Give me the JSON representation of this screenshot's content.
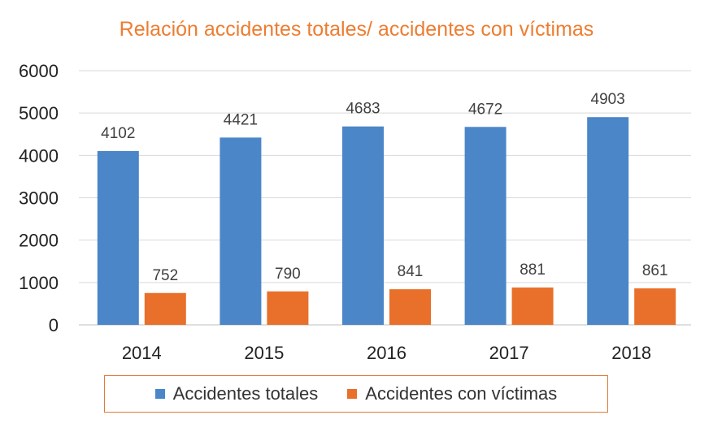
{
  "chart_data": {
    "type": "bar",
    "title": "Relación accidentes totales/ accidentes con víctimas",
    "categories": [
      "2014",
      "2015",
      "2016",
      "2017",
      "2018"
    ],
    "series": [
      {
        "name": "Accidentes totales",
        "values": [
          4102,
          4421,
          4683,
          4672,
          4903
        ],
        "color": "#4a86c8"
      },
      {
        "name": "Accidentes con víctimas",
        "values": [
          752,
          790,
          841,
          881,
          861
        ],
        "color": "#e8702a"
      }
    ],
    "yticks": [
      "0",
      "1000",
      "2000",
      "3000",
      "4000",
      "5000",
      "6000"
    ],
    "ylim": [
      0,
      6000
    ],
    "grid": true,
    "data_labels": true,
    "legend_position": "bottom",
    "xlabel": "",
    "ylabel": ""
  },
  "colors": {
    "title": "#ed7d31",
    "legend_border": "#e07a3a",
    "grid": "#d9d9d9",
    "text": "#333333"
  }
}
